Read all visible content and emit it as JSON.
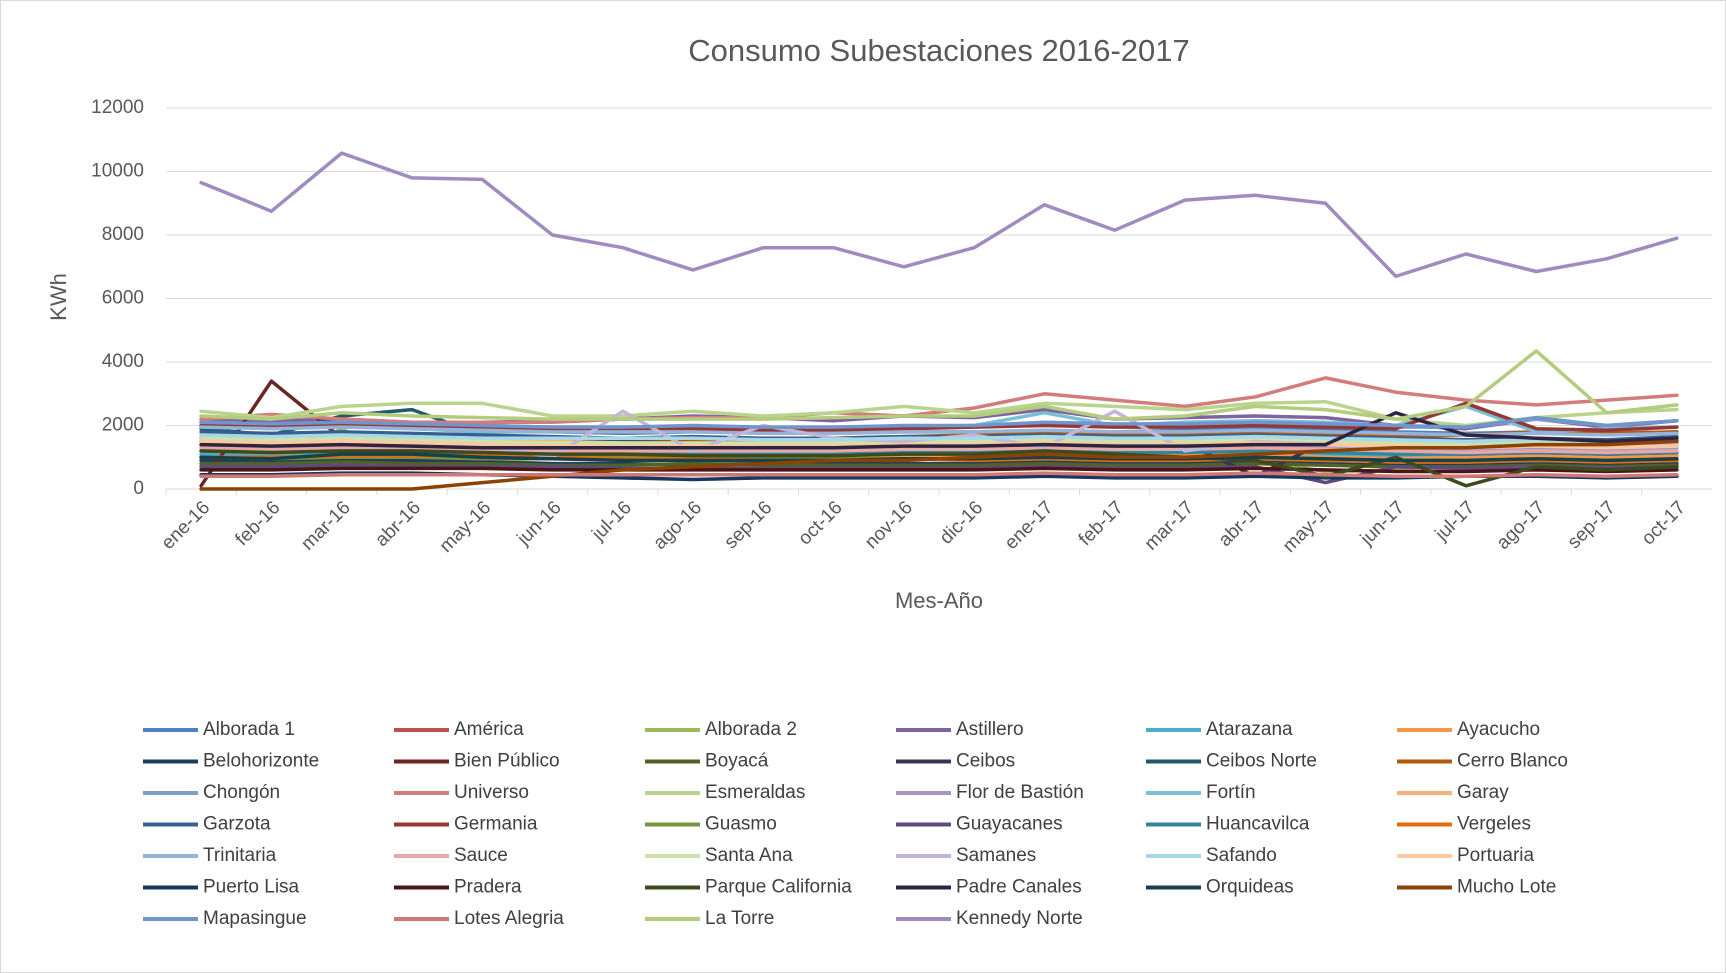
{
  "chart_data": {
    "type": "line",
    "title": "Consumo Subestaciones 2016-2017",
    "xlabel": "Mes-Año",
    "ylabel": "KWh",
    "categories": [
      "ene-16",
      "feb-16",
      "mar-16",
      "abr-16",
      "may-16",
      "jun-16",
      "jul-16",
      "ago-16",
      "sep-16",
      "oct-16",
      "nov-16",
      "dic-16",
      "ene-17",
      "feb-17",
      "mar-17",
      "abr-17",
      "may-17",
      "jun-17",
      "jul-17",
      "ago-17",
      "sep-17",
      "oct-17"
    ],
    "ylim": [
      0,
      12000
    ],
    "yticks": [
      0,
      2000,
      4000,
      6000,
      8000,
      10000,
      12000
    ],
    "grid": true,
    "legend": "bottom",
    "series": [
      {
        "name": "Alborada 1",
        "color": "#4f81bd",
        "values": [
          2000,
          1900,
          2000,
          1950,
          1900,
          1800,
          1750,
          1800,
          1800,
          1750,
          1800,
          1800,
          1850,
          1800,
          1850,
          1900,
          1850,
          1800,
          1750,
          1800,
          1750,
          1800
        ]
      },
      {
        "name": "América",
        "color": "#c0504d",
        "values": [
          1300,
          1250,
          1300,
          1250,
          1200,
          1200,
          1150,
          1150,
          1200,
          1150,
          1200,
          1200,
          1250,
          1200,
          1200,
          1250,
          1200,
          1150,
          1100,
          1150,
          1100,
          1150
        ]
      },
      {
        "name": "Alborada 2",
        "color": "#9bbb59",
        "values": [
          700,
          750,
          1900,
          650,
          900,
          800,
          750,
          800,
          900,
          950,
          950,
          950,
          1100,
          900,
          950,
          900,
          550,
          600,
          800,
          850,
          750,
          800
        ]
      },
      {
        "name": "Astillero",
        "color": "#8064a2",
        "values": [
          2200,
          2150,
          2200,
          2100,
          2100,
          2150,
          2200,
          2300,
          2250,
          2150,
          2300,
          2250,
          2500,
          2200,
          2250,
          2300,
          2250,
          2000,
          1900,
          2200,
          1950,
          2150
        ]
      },
      {
        "name": "Atarazana",
        "color": "#4bacc6",
        "values": [
          1100,
          1050,
          1100,
          1050,
          1000,
          1000,
          950,
          1000,
          1000,
          1050,
          1050,
          1100,
          1150,
          1100,
          1100,
          1150,
          1100,
          1050,
          1000,
          1050,
          1000,
          1050
        ]
      },
      {
        "name": "Ayacucho",
        "color": "#f79646",
        "values": [
          1200,
          1150,
          1200,
          1150,
          1100,
          1100,
          1050,
          1050,
          1000,
          1050,
          1050,
          1000,
          1100,
          1050,
          1050,
          1100,
          1000,
          950,
          1000,
          1050,
          1000,
          1050
        ]
      },
      {
        "name": "Belohorizonte",
        "color": "#1f3b60",
        "values": [
          900,
          850,
          900,
          900,
          850,
          800,
          800,
          750,
          800,
          800,
          800,
          800,
          850,
          800,
          800,
          850,
          800,
          750,
          750,
          800,
          750,
          800
        ]
      },
      {
        "name": "Bien Público",
        "color": "#6b2523",
        "values": [
          100,
          3400,
          1600,
          1500,
          1400,
          1300,
          1200,
          1100,
          1150,
          1200,
          1150,
          1200,
          1250,
          1200,
          1200,
          1250,
          1200,
          1150,
          1100,
          1150,
          1100,
          1150
        ]
      },
      {
        "name": "Boyacá",
        "color": "#4f6228",
        "values": [
          800,
          800,
          850,
          800,
          800,
          750,
          750,
          800,
          750,
          750,
          750,
          750,
          800,
          750,
          750,
          800,
          750,
          700,
          700,
          750,
          700,
          750
        ]
      },
      {
        "name": "Ceibos",
        "color": "#3f3151",
        "values": [
          1600,
          1550,
          1600,
          1550,
          1500,
          1450,
          1400,
          1400,
          1400,
          1400,
          1450,
          1450,
          1500,
          1450,
          1450,
          400,
          1500,
          1400,
          1400,
          1450,
          1400,
          1450
        ]
      },
      {
        "name": "Ceibos Norte",
        "color": "#215968",
        "values": [
          1900,
          1700,
          2300,
          2500,
          1700,
          1600,
          1500,
          1500,
          1500,
          1500,
          1500,
          1500,
          1550,
          1500,
          1500,
          1550,
          1500,
          1450,
          1450,
          1500,
          1450,
          1500
        ]
      },
      {
        "name": "Cerro Blanco",
        "color": "#b35a0e",
        "values": [
          1500,
          1450,
          1500,
          1450,
          1450,
          1400,
          1450,
          1500,
          1550,
          1600,
          1650,
          1700,
          1750,
          1700,
          1700,
          1750,
          1700,
          1650,
          1700,
          1800,
          1750,
          1800
        ]
      },
      {
        "name": "Chongón",
        "color": "#7ba0cd",
        "values": [
          2100,
          2050,
          2100,
          2050,
          2000,
          1950,
          1950,
          1950,
          1900,
          1950,
          1950,
          2000,
          2050,
          2000,
          2000,
          2050,
          2050,
          1950,
          1950,
          2200,
          2000,
          2150
        ]
      },
      {
        "name": "Universo",
        "color": "#d47b7b",
        "values": [
          2200,
          2350,
          2200,
          2100,
          2100,
          2100,
          2200,
          2250,
          2250,
          2400,
          2300,
          2550,
          3000,
          2800,
          2600,
          2900,
          3500,
          3050,
          2800,
          2650,
          2800,
          2950
        ]
      },
      {
        "name": "Esmeraldas",
        "color": "#b9d48c",
        "values": [
          2450,
          2250,
          2600,
          2700,
          2700,
          2300,
          2300,
          2450,
          2300,
          2400,
          2600,
          2400,
          2700,
          2600,
          2500,
          2700,
          2750,
          2200,
          2000,
          2250,
          2400,
          2500
        ]
      },
      {
        "name": "Flor de Bastión",
        "color": "#a995c4",
        "values": [
          1400,
          1350,
          1400,
          1350,
          1300,
          1250,
          1250,
          1200,
          1250,
          1250,
          1300,
          1300,
          1350,
          1300,
          1300,
          1350,
          1300,
          1250,
          1250,
          1300,
          1250,
          1300
        ]
      },
      {
        "name": "Fortín",
        "color": "#78c0d6",
        "values": [
          2100,
          2000,
          2050,
          1900,
          1800,
          1800,
          1950,
          1950,
          1800,
          1800,
          1900,
          2000,
          2400,
          2000,
          2100,
          2150,
          2100,
          2000,
          2600,
          1800,
          1900,
          1950
        ]
      },
      {
        "name": "Garay",
        "color": "#f8b27a",
        "values": [
          1700,
          1500,
          1700,
          1600,
          1550,
          1500,
          1450,
          1400,
          1400,
          1400,
          1450,
          1400,
          1500,
          1450,
          1450,
          1500,
          1450,
          1400,
          1400,
          1450,
          1400,
          1450
        ]
      },
      {
        "name": "Garzota",
        "color": "#376092",
        "values": [
          1800,
          1750,
          1800,
          1750,
          1700,
          1650,
          1600,
          1650,
          1600,
          1600,
          1650,
          1650,
          1700,
          1650,
          1650,
          1700,
          1650,
          1600,
          1550,
          1600,
          1550,
          1650
        ]
      },
      {
        "name": "Germania",
        "color": "#953735",
        "values": [
          2000,
          1950,
          2000,
          1950,
          1950,
          1900,
          1900,
          1900,
          1850,
          1850,
          1900,
          1950,
          2000,
          1950,
          1950,
          2000,
          1950,
          1900,
          2700,
          1900,
          1850,
          1950
        ]
      },
      {
        "name": "Guasmo",
        "color": "#77933c",
        "values": [
          1000,
          950,
          1000,
          1000,
          950,
          950,
          1000,
          1000,
          950,
          950,
          950,
          950,
          1000,
          950,
          950,
          950,
          900,
          850,
          850,
          900,
          850,
          900
        ]
      },
      {
        "name": "Guayacanes",
        "color": "#604a7b",
        "values": [
          700,
          700,
          750,
          700,
          700,
          700,
          650,
          650,
          650,
          650,
          650,
          650,
          700,
          650,
          650,
          700,
          200,
          700,
          650,
          700,
          650,
          700
        ]
      },
      {
        "name": "Huancavilca",
        "color": "#31859c",
        "values": [
          1200,
          1150,
          1200,
          1150,
          1150,
          1100,
          1100,
          1100,
          1100,
          1100,
          1150,
          1150,
          1200,
          1150,
          1150,
          1200,
          1150,
          1100,
          1100,
          1150,
          1100,
          1150
        ]
      },
      {
        "name": "Vergeles",
        "color": "#e46c0a",
        "values": [
          1000,
          1000,
          1050,
          1050,
          1050,
          1000,
          950,
          950,
          900,
          900,
          950,
          900,
          950,
          900,
          900,
          950,
          900,
          850,
          850,
          900,
          850,
          900
        ]
      },
      {
        "name": "Trinitaria",
        "color": "#95b3d7",
        "values": [
          1950,
          1900,
          1950,
          1900,
          1850,
          1800,
          1800,
          1800,
          1750,
          1750,
          1800,
          1800,
          1850,
          1800,
          1800,
          1850,
          1800,
          1750,
          1700,
          1750,
          1700,
          1750
        ]
      },
      {
        "name": "Sauce",
        "color": "#e6a9a7",
        "values": [
          1300,
          1250,
          1300,
          1250,
          1250,
          1200,
          1200,
          1200,
          1200,
          1200,
          1250,
          1250,
          1300,
          1250,
          1250,
          1300,
          1250,
          1200,
          1150,
          1200,
          1150,
          1200
        ]
      },
      {
        "name": "Santa Ana",
        "color": "#cfe0aa",
        "values": [
          1600,
          1550,
          1600,
          1550,
          1500,
          1450,
          1450,
          1450,
          1450,
          1450,
          1500,
          1500,
          1550,
          1500,
          1500,
          1550,
          1500,
          1450,
          1400,
          1450,
          1400,
          1450
        ]
      },
      {
        "name": "Samanes",
        "color": "#c2b5d6",
        "values": [
          1500,
          1450,
          1500,
          1450,
          1400,
          1000,
          2450,
          1200,
          2000,
          1600,
          1500,
          1700,
          1300,
          2450,
          1200,
          1500,
          1400,
          1300,
          1300,
          1400,
          1300,
          1400
        ]
      },
      {
        "name": "Safando",
        "color": "#a8d8e6",
        "values": [
          1700,
          1650,
          1700,
          1650,
          1600,
          1600,
          1600,
          1600,
          1550,
          1550,
          1600,
          1600,
          1650,
          1600,
          1600,
          1650,
          1600,
          1550,
          1500,
          1550,
          1500,
          1550
        ]
      },
      {
        "name": "Portuaria",
        "color": "#fbc89f",
        "values": [
          1500,
          1450,
          1500,
          1450,
          1400,
          1350,
          1350,
          1350,
          1350,
          1350,
          1400,
          1400,
          1450,
          1400,
          1400,
          1450,
          1400,
          1350,
          1300,
          1350,
          1300,
          1350
        ]
      },
      {
        "name": "Puerto Lisa",
        "color": "#17375e",
        "values": [
          450,
          450,
          500,
          500,
          450,
          400,
          350,
          300,
          350,
          350,
          350,
          350,
          400,
          350,
          350,
          400,
          350,
          350,
          400,
          400,
          350,
          400
        ]
      },
      {
        "name": "Pradera",
        "color": "#4a1514",
        "values": [
          600,
          600,
          650,
          650,
          650,
          600,
          600,
          600,
          600,
          600,
          600,
          600,
          650,
          600,
          600,
          650,
          600,
          550,
          550,
          600,
          550,
          600
        ]
      },
      {
        "name": "Parque California",
        "color": "#3c4a1e",
        "values": [
          1200,
          1150,
          1200,
          1200,
          1150,
          1100,
          1100,
          1050,
          1050,
          1050,
          1100,
          1100,
          1200,
          1100,
          1000,
          900,
          400,
          1000,
          100,
          700,
          600,
          700
        ]
      },
      {
        "name": "Padre Canales",
        "color": "#2f2440",
        "values": [
          1400,
          1350,
          1400,
          1350,
          1300,
          1300,
          1300,
          1300,
          1300,
          1300,
          1350,
          1350,
          1400,
          1350,
          1350,
          1400,
          1400,
          2400,
          1700,
          1600,
          1500,
          1600
        ]
      },
      {
        "name": "Orquideas",
        "color": "#16404a",
        "values": [
          1000,
          950,
          1100,
          1100,
          1000,
          950,
          900,
          900,
          900,
          900,
          950,
          950,
          1000,
          950,
          950,
          1000,
          950,
          900,
          900,
          950,
          900,
          950
        ]
      },
      {
        "name": "Mucho Lote",
        "color": "#8a4205",
        "values": [
          0,
          0,
          0,
          0,
          200,
          400,
          600,
          700,
          800,
          900,
          900,
          1000,
          1100,
          1000,
          1000,
          1100,
          1200,
          1300,
          1300,
          1400,
          1400,
          1500
        ]
      },
      {
        "name": "Mapasingue",
        "color": "#6f95cc",
        "values": [
          2100,
          2050,
          2100,
          2050,
          2000,
          1950,
          1950,
          2000,
          1950,
          1950,
          2000,
          2000,
          2100,
          2050,
          2050,
          2100,
          2050,
          2000,
          1950,
          2250,
          2000,
          2150
        ]
      },
      {
        "name": "Lotes Alegria",
        "color": "#d07875",
        "values": [
          400,
          400,
          450,
          450,
          450,
          450,
          450,
          450,
          450,
          450,
          450,
          450,
          500,
          450,
          450,
          500,
          450,
          400,
          400,
          450,
          400,
          450
        ]
      },
      {
        "name": "La Torre",
        "color": "#b3cc7e",
        "values": [
          2300,
          2200,
          2400,
          2300,
          2250,
          2200,
          2200,
          2200,
          2200,
          2250,
          2300,
          2300,
          2600,
          2200,
          2300,
          2600,
          2500,
          2200,
          2600,
          4350,
          2400,
          2650
        ]
      },
      {
        "name": "Kennedy Norte",
        "color": "#a08bc0",
        "values": [
          9650,
          8750,
          10580,
          9800,
          9750,
          8000,
          7600,
          6900,
          7600,
          7600,
          7000,
          7600,
          8950,
          8150,
          9100,
          9250,
          9000,
          6700,
          7400,
          6850,
          7250,
          7900
        ]
      }
    ]
  }
}
